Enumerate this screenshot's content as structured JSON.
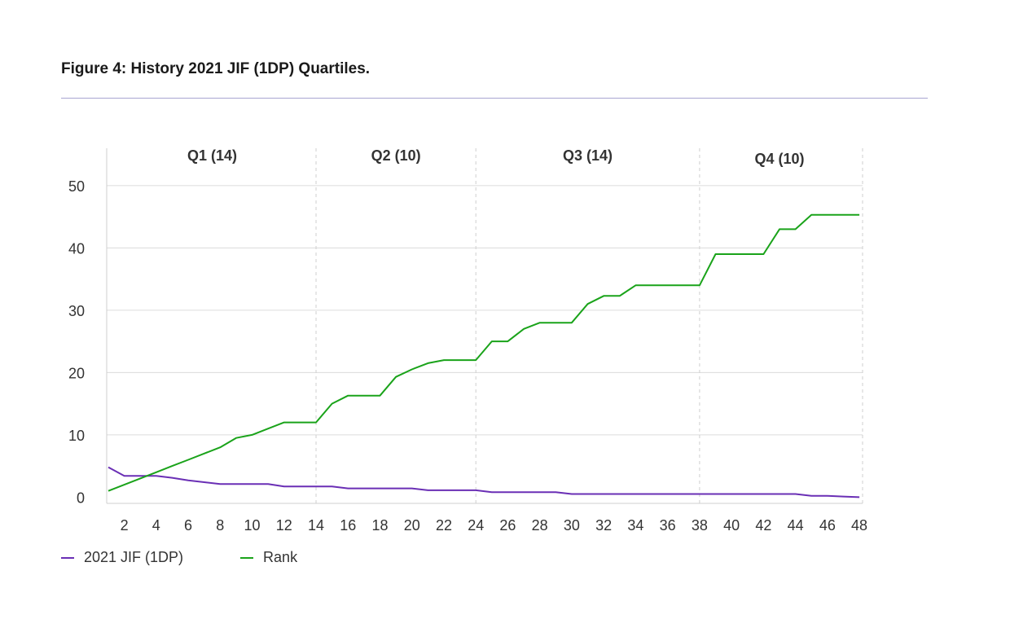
{
  "figure": {
    "title": "Figure 4: History 2021 JIF (1DP) Quartiles."
  },
  "colors": {
    "jif": "#6a2fb5",
    "rank": "#1aa31a",
    "grid": "#dcdcdc",
    "rule": "#a9a6d2"
  },
  "chart_data": {
    "type": "line",
    "x": [
      1,
      2,
      3,
      4,
      5,
      6,
      7,
      8,
      9,
      10,
      11,
      12,
      13,
      14,
      15,
      16,
      17,
      18,
      19,
      20,
      21,
      22,
      23,
      24,
      25,
      26,
      27,
      28,
      29,
      30,
      31,
      32,
      33,
      34,
      35,
      36,
      37,
      38,
      39,
      40,
      41,
      42,
      43,
      44,
      45,
      46,
      47,
      48
    ],
    "xticks": [
      2,
      4,
      6,
      8,
      10,
      12,
      14,
      16,
      18,
      20,
      22,
      24,
      26,
      28,
      30,
      32,
      34,
      36,
      38,
      40,
      42,
      44,
      46,
      48
    ],
    "xlim": [
      0.9,
      48.2
    ],
    "yticks": [
      0,
      10,
      20,
      30,
      40,
      50
    ],
    "ylim": [
      -1,
      56
    ],
    "grid": true,
    "legend_position": "bottom-left",
    "quartiles": [
      {
        "label": "Q1 (14)",
        "start": 1,
        "end": 14
      },
      {
        "label": "Q2 (10)",
        "start": 14,
        "end": 24
      },
      {
        "label": "Q3 (14)",
        "start": 24,
        "end": 38
      },
      {
        "label": "Q4 (10)",
        "start": 38,
        "end": 48
      }
    ],
    "series": [
      {
        "name": "2021 JIF (1DP)",
        "color": "#6a2fb5",
        "values": [
          4.8,
          3.4,
          3.4,
          3.4,
          3.1,
          2.7,
          2.4,
          2.1,
          2.1,
          2.1,
          2.1,
          1.7,
          1.7,
          1.7,
          1.7,
          1.4,
          1.4,
          1.4,
          1.4,
          1.4,
          1.1,
          1.1,
          1.1,
          1.1,
          0.8,
          0.8,
          0.8,
          0.8,
          0.8,
          0.5,
          0.5,
          0.5,
          0.5,
          0.5,
          0.5,
          0.5,
          0.5,
          0.5,
          0.5,
          0.5,
          0.5,
          0.5,
          0.5,
          0.5,
          0.2,
          0.2,
          0.1,
          0.0
        ]
      },
      {
        "name": "Rank",
        "color": "#1aa31a",
        "values": [
          1,
          2,
          3,
          4,
          5,
          6,
          7,
          8,
          9.5,
          10,
          11,
          12,
          12,
          12,
          15,
          16.3,
          16.3,
          16.3,
          19.3,
          20.5,
          21.5,
          22,
          22,
          22,
          25,
          25,
          27,
          28,
          28,
          28,
          31,
          32.3,
          32.3,
          34,
          34,
          34,
          34,
          34,
          39,
          39,
          39,
          39,
          43,
          43,
          45.3,
          45.3,
          45.3,
          45.3
        ]
      }
    ]
  }
}
